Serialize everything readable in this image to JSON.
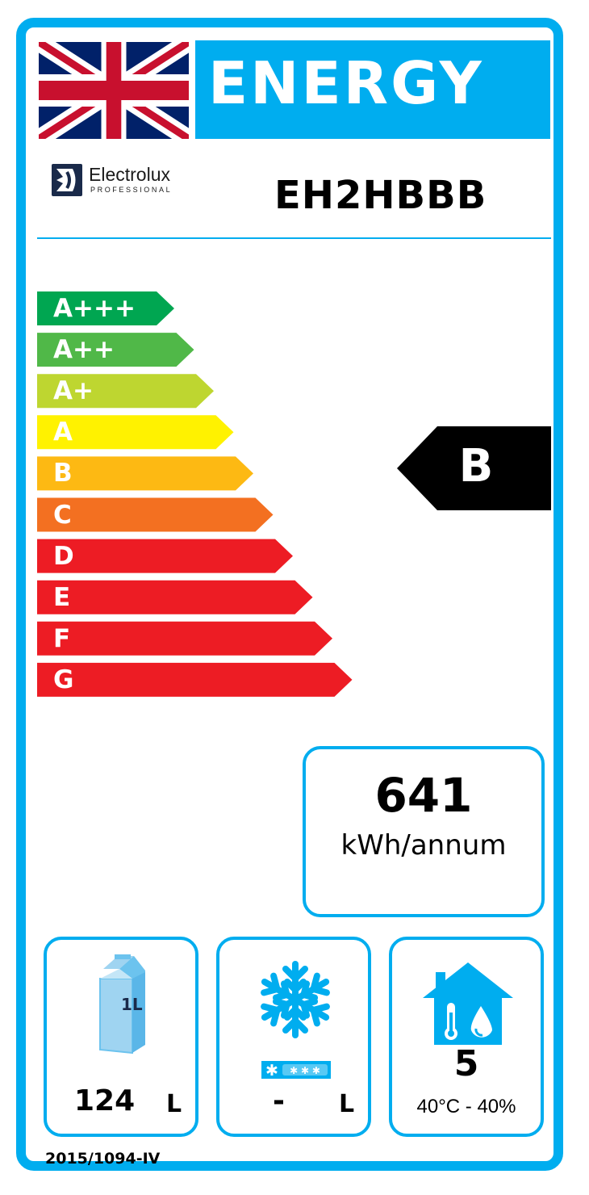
{
  "header": {
    "title": "ENERGY",
    "flag_icon": "uk-flag-icon",
    "accent_color": "#00adef"
  },
  "brand": {
    "name": "Electrolux",
    "subline": "PROFESSIONAL",
    "logo_icon": "electrolux-logo-icon"
  },
  "model": "EH2HBBB",
  "scale": {
    "classes": [
      {
        "label": "A+++",
        "color": "#00a651"
      },
      {
        "label": "A++",
        "color": "#50b848"
      },
      {
        "label": "A+",
        "color": "#bed630"
      },
      {
        "label": "A",
        "color": "#fff200"
      },
      {
        "label": "B",
        "color": "#fdb913"
      },
      {
        "label": "C",
        "color": "#f37021"
      },
      {
        "label": "D",
        "color": "#ed1c24"
      },
      {
        "label": "E",
        "color": "#ed1c24"
      },
      {
        "label": "F",
        "color": "#ed1c24"
      },
      {
        "label": "G",
        "color": "#ed1c24"
      }
    ]
  },
  "rating": {
    "class": "B",
    "color": "#000000"
  },
  "consumption": {
    "value": "641",
    "unit": "kWh/annum"
  },
  "chill_volume": {
    "icon": "milk-carton-icon",
    "carton_label": "1L",
    "value": "124",
    "unit": "L"
  },
  "frozen_volume": {
    "icon": "snowflake-icon",
    "stars_icon": "freezer-stars-icon",
    "value": "-",
    "unit": "L"
  },
  "climate_class": {
    "icon": "house-climate-icon",
    "value": "5",
    "range": "40°C - 40%"
  },
  "regulation": "2015/1094-IV"
}
